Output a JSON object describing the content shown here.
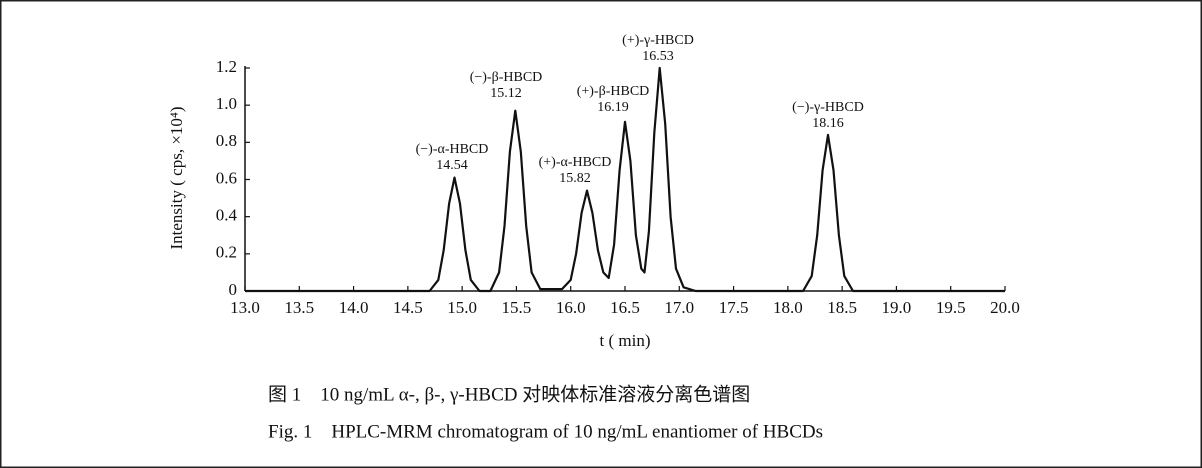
{
  "chart_data": {
    "type": "line",
    "x": [
      13.0,
      14.7,
      14.78,
      14.83,
      14.88,
      14.93,
      14.98,
      15.03,
      15.08,
      15.16,
      15.26,
      15.34,
      15.39,
      15.44,
      15.49,
      15.54,
      15.59,
      15.64,
      15.72,
      15.92,
      16.0,
      16.05,
      16.1,
      16.15,
      16.2,
      16.25,
      16.3,
      16.35,
      16.4,
      16.45,
      16.5,
      16.55,
      16.6,
      16.65,
      16.68,
      16.72,
      16.77,
      16.82,
      16.87,
      16.92,
      16.97,
      17.04,
      17.15,
      18.14,
      18.22,
      18.27,
      18.32,
      18.37,
      18.42,
      18.47,
      18.52,
      18.6,
      20.0
    ],
    "values": [
      0,
      0,
      0.06,
      0.22,
      0.47,
      0.61,
      0.47,
      0.22,
      0.06,
      0,
      0,
      0.1,
      0.35,
      0.75,
      0.97,
      0.75,
      0.35,
      0.1,
      0.01,
      0.01,
      0.06,
      0.2,
      0.42,
      0.54,
      0.42,
      0.22,
      0.1,
      0.07,
      0.25,
      0.65,
      0.91,
      0.7,
      0.3,
      0.12,
      0.1,
      0.32,
      0.85,
      1.2,
      0.9,
      0.4,
      0.12,
      0.02,
      0,
      0,
      0.08,
      0.3,
      0.65,
      0.84,
      0.65,
      0.3,
      0.08,
      0,
      0
    ],
    "color": "#111111",
    "xlim": [
      13.0,
      20.0
    ],
    "xticks": [
      {
        "value": 13,
        "label": "13.0"
      },
      13.5,
      {
        "value": 14,
        "label": "14.0"
      },
      14.5,
      {
        "value": 15,
        "label": "15.0"
      },
      15.5,
      {
        "value": 16,
        "label": "16.0"
      },
      16.5,
      {
        "value": 17,
        "label": "17.0"
      },
      17.5,
      {
        "value": 18,
        "label": "18.0"
      },
      18.5,
      {
        "value": 19,
        "label": "19.0"
      },
      19.5,
      {
        "value": 20,
        "label": "20.0"
      }
    ],
    "ylim": [
      0,
      1.2
    ],
    "yticks": [
      0,
      0.2,
      0.4,
      0.6,
      0.8,
      {
        "value": 1,
        "label": "1.0"
      },
      1.2
    ],
    "xlabel": "t ( min)",
    "ylabel": "Intensity ( cps, ×10⁴)",
    "annotations": [
      {
        "name": "(−)-α-HBCD",
        "time": "14.54"
      },
      {
        "name": "(−)-β-HBCD",
        "time": "15.12"
      },
      {
        "name": "(+)-α-HBCD",
        "time": "15.82"
      },
      {
        "name": "(+)-β-HBCD",
        "time": "16.19"
      },
      {
        "name": "(+)-γ-HBCD",
        "time": "16.53"
      },
      {
        "name": "(−)-γ-HBCD",
        "time": "18.16"
      }
    ]
  },
  "caption": {
    "zh": "图 1　10 ng/mL α-, β-, γ-HBCD 对映体标准溶液分离色谱图",
    "en": "Fig. 1　HPLC-MRM chromatogram of 10 ng/mL enantiomer of HBCDs"
  }
}
